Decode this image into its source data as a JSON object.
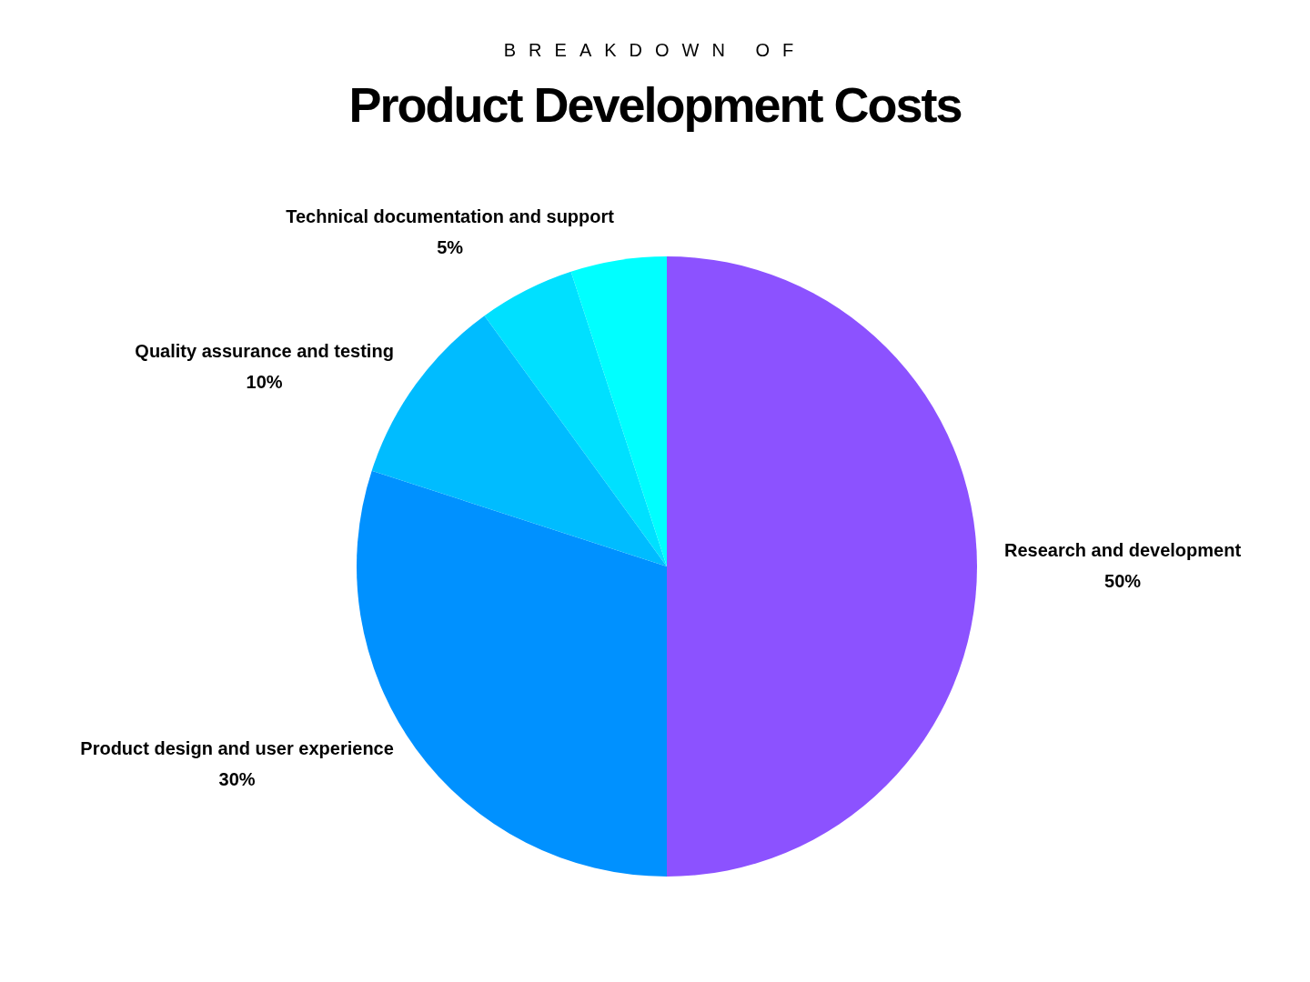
{
  "chart_data": {
    "type": "pie",
    "subtitle": "BREAKDOWN OF",
    "title": "Product Development Costs",
    "categories": [
      "Research and development",
      "Product design and user experience",
      "Quality assurance and testing",
      null,
      "Technical documentation and support"
    ],
    "values": [
      50,
      30,
      10,
      5,
      5
    ],
    "colors": [
      "#8c52ff",
      "#0091ff",
      "#00bcff",
      "#00e0ff",
      "#00ffff"
    ],
    "value_labels": [
      "50%",
      "30%",
      "10%",
      null,
      "5%"
    ],
    "legend": false
  }
}
